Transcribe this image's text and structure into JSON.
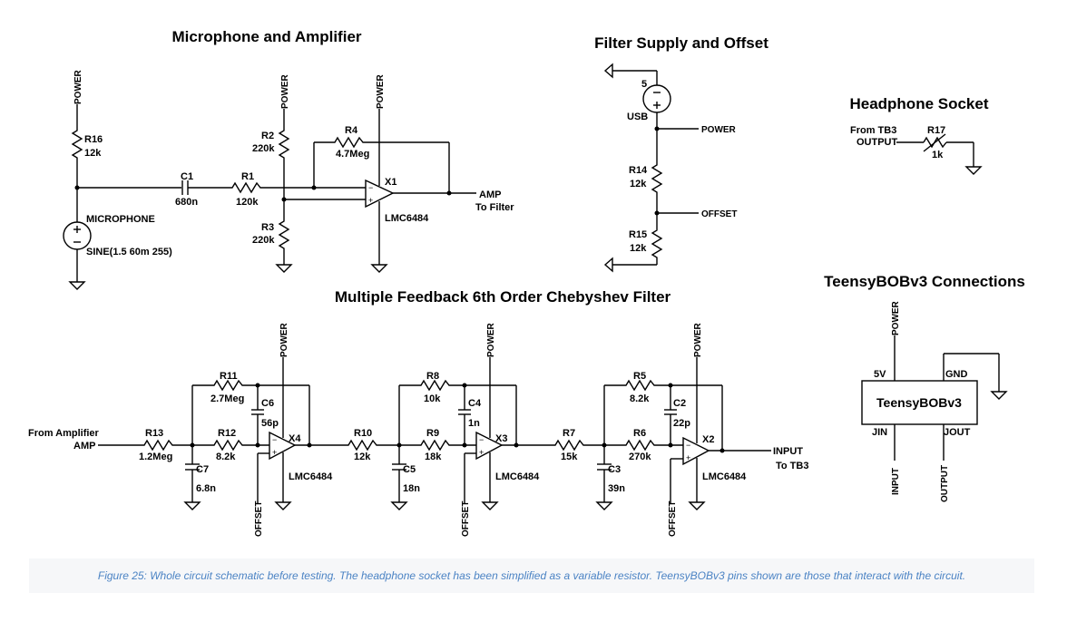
{
  "titles": {
    "mic_amp": "Microphone and Amplifier",
    "filter_supply": "Filter Supply and Offset",
    "headphone": "Headphone Socket",
    "chebyshev": "Multiple Feedback 6th Order Chebyshev Filter",
    "teensy_conn": "TeensyBOBv3 Connections"
  },
  "nets": {
    "power": "POWER",
    "offset": "OFFSET",
    "input": "INPUT",
    "output": "OUTPUT"
  },
  "mic": {
    "r16_name": "R16",
    "r16_val": "12k",
    "c1_name": "C1",
    "c1_val": "680n",
    "r1_name": "R1",
    "r1_val": "120k",
    "r2_name": "R2",
    "r2_val": "220k",
    "r3_name": "R3",
    "r3_val": "220k",
    "r4_name": "R4",
    "r4_val": "4.7Meg",
    "x1_name": "X1",
    "x1_model": "LMC6484",
    "source_name": "MICROPHONE",
    "source_val": "SINE(1.5 60m 255)",
    "out_line1": "AMP",
    "out_line2": "To Filter"
  },
  "supply": {
    "v_val": "5",
    "v_name": "USB",
    "power_lbl": "POWER",
    "r14_name": "R14",
    "r14_val": "12k",
    "r15_name": "R15",
    "r15_val": "12k",
    "offset_lbl": "OFFSET"
  },
  "headphone": {
    "from1": "From TB3",
    "from2": "OUTPUT",
    "r17_name": "R17",
    "r17_val": "1k"
  },
  "filter": {
    "in1": "From Amplifier",
    "in2": "AMP",
    "r13_name": "R13",
    "r13_val": "1.2Meg",
    "c7_name": "C7",
    "c7_val": "6.8n",
    "r11_name": "R11",
    "r11_val": "2.7Meg",
    "c6_name": "C6",
    "c6_val": "56p",
    "r12_name": "R12",
    "r12_val": "8.2k",
    "x4_name": "X4",
    "x4_model": "LMC6484",
    "r10_name": "R10",
    "r10_val": "12k",
    "c5_name": "C5",
    "c5_val": "18n",
    "r8_name": "R8",
    "r8_val": "10k",
    "c4_name": "C4",
    "c4_val": "1n",
    "r9_name": "R9",
    "r9_val": "18k",
    "x3_name": "X3",
    "x3_model": "LMC6484",
    "r7_name": "R7",
    "r7_val": "15k",
    "c3_name": "C3",
    "c3_val": "39n",
    "r5_name": "R5",
    "r5_val": "8.2k",
    "c2_name": "C2",
    "c2_val": "22p",
    "r6_name": "R6",
    "r6_val": "270k",
    "x2_name": "X2",
    "x2_model": "LMC6484",
    "out1": "INPUT",
    "out2": "To TB3"
  },
  "teensy": {
    "name": "TeensyBOBv3",
    "pin_5v": "5V",
    "pin_gnd": "GND",
    "pin_jin": "JIN",
    "pin_jout": "JOUT"
  },
  "caption": "Figure 25: Whole circuit schematic before testing. The headphone socket has been simplified as a variable resistor. TeensyBOBv3 pins shown are those that interact with the circuit."
}
